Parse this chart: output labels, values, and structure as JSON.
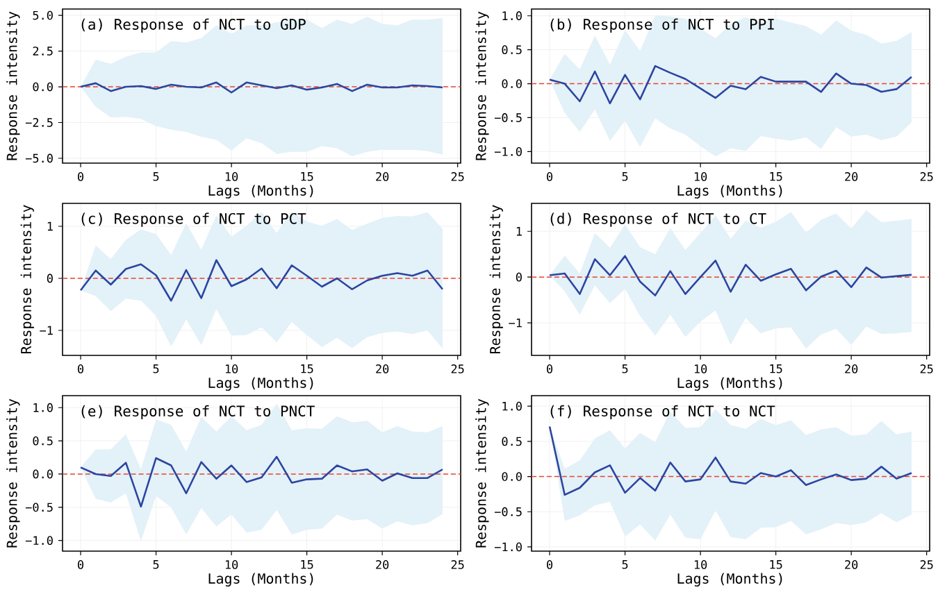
{
  "chart_data": [
    {
      "type": "line",
      "title": "(a) Response of NCT to GDP",
      "xlabel": "Lags (Months)",
      "ylabel": "Response intensity",
      "grid": true,
      "xlim": [
        -1.2,
        25.2
      ],
      "ylim": [
        -5.34,
        5.44
      ],
      "xticks": [
        0,
        5,
        10,
        15,
        20,
        25
      ],
      "yticks": [
        {
          "value": -5,
          "label": "−5.0"
        },
        {
          "value": -2.5,
          "label": "−2.5"
        },
        {
          "value": 0,
          "label": "0.0"
        },
        {
          "value": 2.5,
          "label": "2.5"
        },
        {
          "value": 5,
          "label": "5.0"
        }
      ],
      "x": [
        0,
        1,
        2,
        3,
        4,
        5,
        6,
        7,
        8,
        9,
        10,
        11,
        12,
        13,
        14,
        15,
        16,
        17,
        18,
        19,
        20,
        21,
        22,
        23,
        24
      ],
      "ref_lines": [
        {
          "axis": "y",
          "value": 0,
          "color": "#e8432e",
          "line_style": "dashed"
        }
      ],
      "series": [
        {
          "color": "#2b45a0",
          "values": [
            0,
            0.25,
            -0.3,
            0,
            0.05,
            -0.15,
            0.15,
            0,
            -0.05,
            0.3,
            -0.4,
            0.3,
            0.1,
            -0.1,
            0.1,
            -0.2,
            -0.05,
            0.2,
            -0.3,
            0.15,
            -0.05,
            -0.05,
            0.1,
            0.05,
            -0.05
          ],
          "upper": [
            0,
            1.9,
            1.6,
            2.1,
            2.4,
            2.4,
            3.2,
            3.1,
            3.4,
            4.3,
            3.7,
            4.3,
            4.3,
            4.5,
            4.7,
            4.7,
            4.1,
            4.7,
            4.4,
            4.9,
            4.4,
            4.3,
            4.7,
            4.7,
            4.8
          ],
          "lower": [
            0,
            -1.4,
            -2.15,
            -2.1,
            -2.25,
            -2.75,
            -3.0,
            -3.15,
            -3.5,
            -3.7,
            -4.45,
            -3.6,
            -3.95,
            -4.7,
            -4.55,
            -4.55,
            -4.15,
            -4.3,
            -4.85,
            -4.55,
            -4.4,
            -4.42,
            -4.4,
            -4.5,
            -4.75
          ]
        }
      ]
    },
    {
      "type": "line",
      "title": "(b) Response of NCT to PPI",
      "xlabel": "Lags (Months)",
      "ylabel": "Response intensity",
      "grid": true,
      "xlim": [
        -1.2,
        25.2
      ],
      "ylim": [
        -1.17,
        1.1
      ],
      "xticks": [
        0,
        5,
        10,
        15,
        20,
        25
      ],
      "yticks": [
        {
          "value": -1,
          "label": "−1.0"
        },
        {
          "value": -0.5,
          "label": "−0.5"
        },
        {
          "value": 0,
          "label": "0.0"
        },
        {
          "value": 0.5,
          "label": "0.5"
        },
        {
          "value": 1,
          "label": "1.0"
        }
      ],
      "x": [
        0,
        1,
        2,
        3,
        4,
        5,
        6,
        7,
        8,
        9,
        10,
        11,
        12,
        13,
        14,
        15,
        16,
        17,
        18,
        19,
        20,
        21,
        22,
        23,
        24
      ],
      "ref_lines": [
        {
          "axis": "y",
          "value": 0,
          "color": "#e8432e",
          "line_style": "dashed"
        }
      ],
      "series": [
        {
          "color": "#2b45a0",
          "values": [
            0.06,
            0.0,
            -0.26,
            0.18,
            -0.29,
            0.13,
            -0.23,
            0.26,
            0.16,
            0.07,
            -0.07,
            -0.21,
            -0.03,
            -0.08,
            0.1,
            0.03,
            0.03,
            0.03,
            -0.12,
            0.15,
            0.0,
            -0.02,
            -0.12,
            -0.08,
            0.1
          ],
          "upper": [
            0.06,
            0.44,
            0.21,
            0.71,
            0.28,
            0.79,
            0.48,
            1.01,
            0.99,
            0.96,
            0.81,
            0.67,
            0.88,
            0.98,
            0.9,
            0.96,
            0.9,
            0.85,
            0.72,
            0.93,
            0.78,
            0.72,
            0.59,
            0.63,
            0.76
          ],
          "lower": [
            0.06,
            -0.43,
            -0.71,
            -0.38,
            -0.84,
            -0.55,
            -0.93,
            -0.51,
            -0.66,
            -0.75,
            -0.92,
            -1.07,
            -0.95,
            -0.99,
            -0.77,
            -0.81,
            -0.84,
            -0.79,
            -0.96,
            -0.64,
            -0.78,
            -0.75,
            -0.83,
            -0.78,
            -0.57
          ]
        }
      ]
    },
    {
      "type": "line",
      "title": "(c) Response of NCT to PCT",
      "xlabel": "Lags (Months)",
      "ylabel": "Response intensity",
      "grid": true,
      "xlim": [
        -1.2,
        25.2
      ],
      "ylim": [
        -1.48,
        1.44
      ],
      "xticks": [
        0,
        5,
        10,
        15,
        20,
        25
      ],
      "yticks": [
        {
          "value": -1,
          "label": "−1"
        },
        0,
        1
      ],
      "x": [
        0,
        1,
        2,
        3,
        4,
        5,
        6,
        7,
        8,
        9,
        10,
        11,
        12,
        13,
        14,
        15,
        16,
        17,
        18,
        19,
        20,
        21,
        22,
        23,
        24
      ],
      "ref_lines": [
        {
          "axis": "y",
          "value": 0,
          "color": "#e8432e",
          "line_style": "dashed"
        }
      ],
      "series": [
        {
          "color": "#2b45a0",
          "values": [
            -0.23,
            0.15,
            -0.12,
            0.18,
            0.27,
            0.06,
            -0.43,
            0.16,
            -0.38,
            0.35,
            -0.15,
            -0.02,
            0.19,
            -0.19,
            0.25,
            0.05,
            -0.16,
            0.0,
            -0.21,
            -0.04,
            0.05,
            0.1,
            0.05,
            0.15,
            -0.21
          ],
          "upper": [
            -0.23,
            0.63,
            0.37,
            0.74,
            0.94,
            0.85,
            0.45,
            1.06,
            0.55,
            1.21,
            0.8,
            1.01,
            1.28,
            0.87,
            1.28,
            1.09,
            1.01,
            1.14,
            0.93,
            1.05,
            1.16,
            1.2,
            1.19,
            1.27,
            0.95
          ],
          "lower": [
            -0.23,
            -0.34,
            -0.63,
            -0.39,
            -0.43,
            -0.72,
            -1.31,
            -0.79,
            -1.28,
            -0.59,
            -1.1,
            -1.09,
            -0.94,
            -1.23,
            -0.84,
            -1.09,
            -1.32,
            -1.14,
            -1.34,
            -1.13,
            -1.05,
            -1.02,
            -1.07,
            -1.0,
            -1.35
          ]
        }
      ]
    },
    {
      "type": "line",
      "title": "(d) Response of NCT to CT",
      "xlabel": "Lags (Months)",
      "ylabel": "Response intensity",
      "grid": true,
      "xlim": [
        -1.2,
        25.2
      ],
      "ylim": [
        -1.71,
        1.61
      ],
      "xticks": [
        0,
        5,
        10,
        15,
        20,
        25
      ],
      "yticks": [
        {
          "value": -1,
          "label": "−1"
        },
        0,
        1
      ],
      "x": [
        0,
        1,
        2,
        3,
        4,
        5,
        6,
        7,
        8,
        9,
        10,
        11,
        12,
        13,
        14,
        15,
        16,
        17,
        18,
        19,
        20,
        21,
        22,
        23,
        24
      ],
      "ref_lines": [
        {
          "axis": "y",
          "value": 0,
          "color": "#e8432e",
          "line_style": "dashed"
        }
      ],
      "series": [
        {
          "color": "#2b45a0",
          "values": [
            0.04,
            0.08,
            -0.37,
            0.39,
            0.04,
            0.46,
            -0.1,
            -0.4,
            0.13,
            -0.37,
            0.0,
            0.36,
            -0.32,
            0.27,
            -0.08,
            0.06,
            0.18,
            -0.29,
            0.01,
            0.14,
            -0.22,
            0.21,
            -0.01,
            0.02,
            0.05
          ],
          "upper": [
            0.04,
            0.47,
            0.08,
            0.96,
            0.64,
            1.15,
            0.65,
            0.5,
            1.07,
            0.59,
            0.96,
            1.35,
            0.84,
            1.23,
            1.08,
            1.21,
            1.42,
            0.97,
            1.25,
            1.39,
            1.06,
            1.46,
            1.2,
            1.23,
            1.27
          ],
          "lower": [
            0.04,
            -0.31,
            -0.82,
            -0.18,
            -0.57,
            -0.26,
            -0.85,
            -1.28,
            -0.82,
            -1.31,
            -0.97,
            -0.73,
            -1.48,
            -0.89,
            -1.23,
            -1.12,
            -1.1,
            -1.56,
            -1.25,
            -1.13,
            -1.48,
            -1.08,
            -1.24,
            -1.23,
            -1.2
          ]
        }
      ]
    },
    {
      "type": "line",
      "title": "(e) Response of NCT to PNCT",
      "xlabel": "Lags (Months)",
      "ylabel": "Response intensity",
      "grid": true,
      "xlim": [
        -1.2,
        25.2
      ],
      "ylim": [
        -1.16,
        1.18
      ],
      "xticks": [
        0,
        5,
        10,
        15,
        20,
        25
      ],
      "yticks": [
        {
          "value": -1,
          "label": "−1.0"
        },
        {
          "value": -0.5,
          "label": "−0.5"
        },
        {
          "value": 0,
          "label": "0.0"
        },
        {
          "value": 0.5,
          "label": "0.5"
        },
        {
          "value": 1,
          "label": "1.0"
        }
      ],
      "x": [
        0,
        1,
        2,
        3,
        4,
        5,
        6,
        7,
        8,
        9,
        10,
        11,
        12,
        13,
        14,
        15,
        16,
        17,
        18,
        19,
        20,
        21,
        22,
        23,
        24
      ],
      "ref_lines": [
        {
          "axis": "y",
          "value": 0,
          "color": "#e8432e",
          "line_style": "dashed"
        }
      ],
      "series": [
        {
          "color": "#2b45a0",
          "values": [
            0.1,
            0.0,
            -0.03,
            0.17,
            -0.49,
            0.24,
            0.13,
            -0.29,
            0.18,
            -0.07,
            0.13,
            -0.12,
            -0.05,
            0.26,
            -0.13,
            -0.08,
            -0.07,
            0.13,
            0.04,
            0.07,
            -0.1,
            0.01,
            -0.06,
            -0.06,
            0.07
          ],
          "upper": [
            0.1,
            0.37,
            0.37,
            0.6,
            0.07,
            0.82,
            0.74,
            0.34,
            0.86,
            0.64,
            0.87,
            0.66,
            0.74,
            1.06,
            0.66,
            0.69,
            0.68,
            0.87,
            0.78,
            0.8,
            0.63,
            0.72,
            0.64,
            0.63,
            0.72
          ],
          "lower": [
            0.1,
            -0.37,
            -0.43,
            -0.29,
            -1.01,
            -0.33,
            -0.5,
            -0.91,
            -0.51,
            -0.79,
            -0.61,
            -0.88,
            -0.84,
            -0.54,
            -0.91,
            -0.84,
            -0.82,
            -0.61,
            -0.7,
            -0.68,
            -0.82,
            -0.71,
            -0.77,
            -0.74,
            -0.6
          ]
        }
      ]
    },
    {
      "type": "line",
      "title": "(f) Response of NCT to NCT",
      "xlabel": "Lags (Months)",
      "ylabel": "Response intensity",
      "grid": true,
      "xlim": [
        -1.2,
        25.2
      ],
      "ylim": [
        -1.06,
        1.15
      ],
      "xticks": [
        0,
        5,
        10,
        15,
        20,
        25
      ],
      "yticks": [
        {
          "value": -1,
          "label": "−1.0"
        },
        {
          "value": -0.5,
          "label": "−0.5"
        },
        {
          "value": 0,
          "label": "0.0"
        },
        {
          "value": 0.5,
          "label": "0.5"
        },
        {
          "value": 1,
          "label": "1.0"
        }
      ],
      "x": [
        0,
        1,
        2,
        3,
        4,
        5,
        6,
        7,
        8,
        9,
        10,
        11,
        12,
        13,
        14,
        15,
        16,
        17,
        18,
        19,
        20,
        21,
        22,
        23,
        24
      ],
      "ref_lines": [
        {
          "axis": "y",
          "value": 0,
          "color": "#e8432e",
          "line_style": "dashed"
        }
      ],
      "series": [
        {
          "color": "#2b45a0",
          "values": [
            0.71,
            -0.26,
            -0.16,
            0.06,
            0.16,
            -0.23,
            -0.02,
            -0.2,
            0.2,
            -0.07,
            -0.04,
            0.27,
            -0.07,
            -0.1,
            0.05,
            0.0,
            0.09,
            -0.12,
            -0.04,
            0.03,
            -0.05,
            -0.03,
            0.14,
            -0.03,
            0.05
          ],
          "upper": [
            0.71,
            0.11,
            0.23,
            0.54,
            0.66,
            0.4,
            0.62,
            0.49,
            0.92,
            0.69,
            0.7,
            0.96,
            0.73,
            0.68,
            0.82,
            0.73,
            0.8,
            0.59,
            0.67,
            0.7,
            0.58,
            0.6,
            0.79,
            0.6,
            0.64
          ],
          "lower": [
            0.71,
            -0.63,
            -0.55,
            -0.41,
            -0.36,
            -0.85,
            -0.68,
            -0.91,
            -0.54,
            -0.87,
            -0.89,
            -0.48,
            -0.86,
            -0.89,
            -0.73,
            -0.72,
            -0.63,
            -0.82,
            -0.75,
            -0.66,
            -0.69,
            -0.65,
            -0.52,
            -0.65,
            -0.54
          ]
        }
      ]
    }
  ]
}
